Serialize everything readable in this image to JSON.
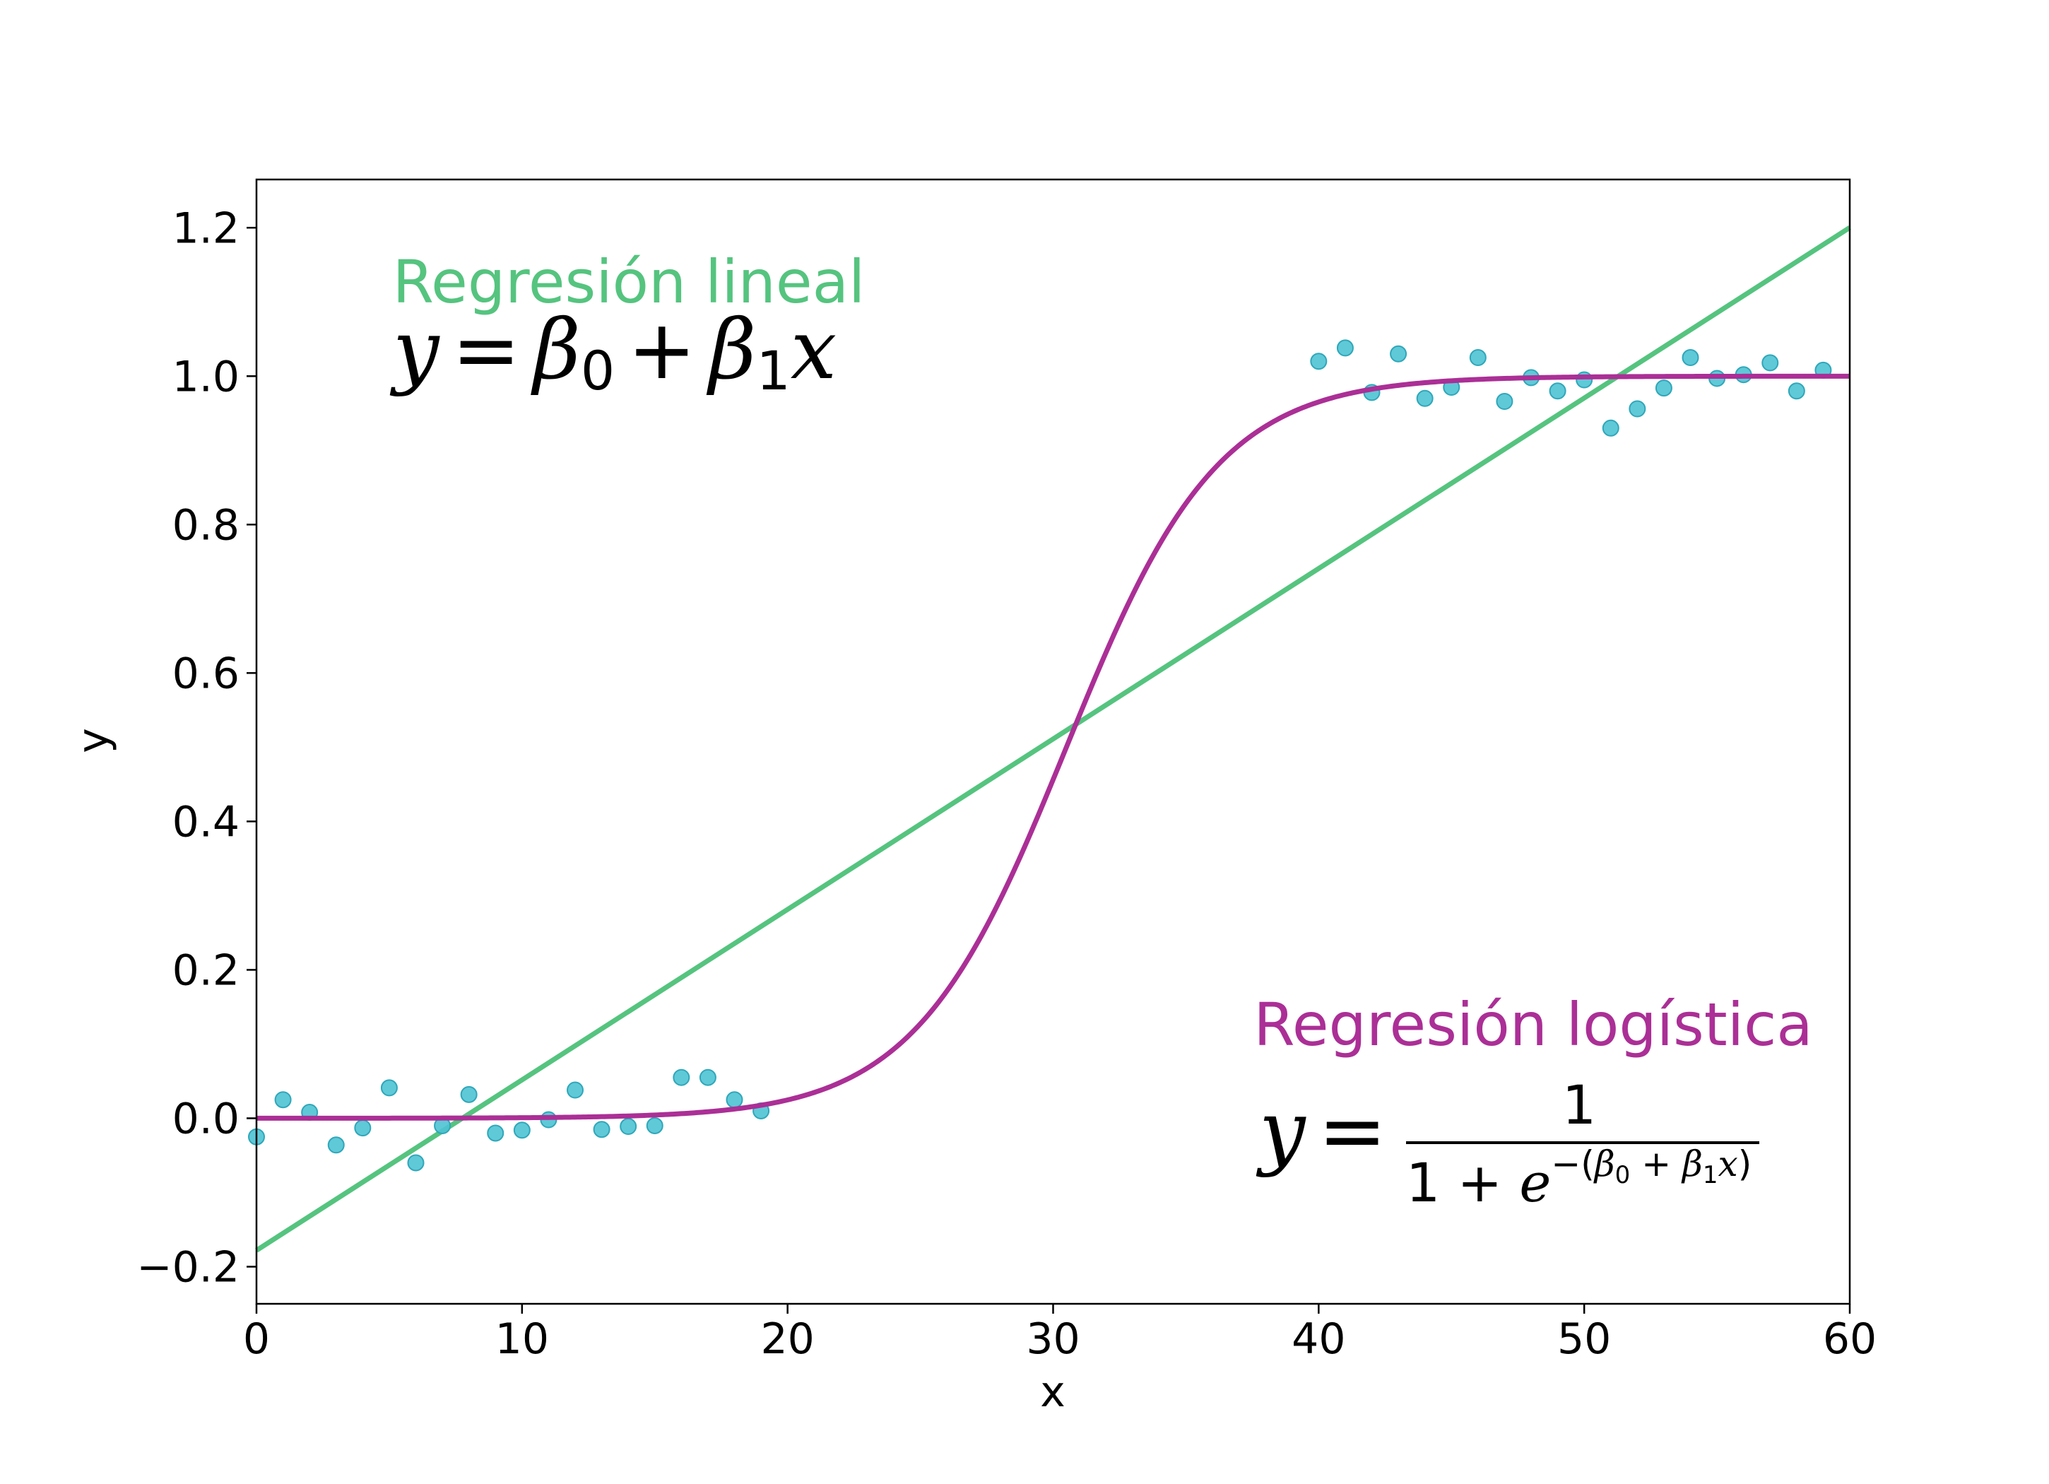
{
  "chart_data": {
    "type": "scatter",
    "xlabel": "x",
    "ylabel": "y",
    "xlim": [
      0,
      60
    ],
    "ylim": [
      -0.25,
      1.265
    ],
    "xticks": [
      0,
      10,
      20,
      30,
      40,
      50,
      60
    ],
    "yticks": [
      -0.2,
      0.0,
      0.2,
      0.4,
      0.6,
      0.8,
      1.0,
      1.2
    ],
    "ytick_labels": [
      "−0.2",
      "0.0",
      "0.2",
      "0.4",
      "0.6",
      "0.8",
      "1.0",
      "1.2"
    ],
    "grid": false,
    "colors": {
      "points": "#4ec3d4",
      "linear": "#55c47f",
      "logistic": "#ab2f96"
    },
    "points": {
      "x": [
        0,
        1,
        2,
        3,
        4,
        5,
        6,
        7,
        8,
        9,
        10,
        11,
        12,
        13,
        14,
        15,
        16,
        17,
        18,
        19,
        40,
        41,
        42,
        43,
        44,
        45,
        46,
        47,
        48,
        49,
        50,
        51,
        52,
        53,
        54,
        55,
        56,
        57,
        58,
        59
      ],
      "y": [
        -0.025,
        0.025,
        0.008,
        -0.036,
        -0.013,
        0.041,
        -0.06,
        -0.01,
        0.032,
        -0.02,
        -0.016,
        -0.002,
        0.038,
        -0.015,
        -0.011,
        -0.01,
        0.055,
        0.055,
        0.025,
        0.01,
        1.02,
        1.038,
        0.978,
        1.03,
        0.97,
        0.985,
        1.025,
        0.966,
        0.998,
        0.98,
        0.995,
        0.93,
        0.956,
        0.984,
        1.025,
        0.997,
        1.002,
        1.018,
        0.98,
        1.008
      ]
    },
    "linear_fit": {
      "intercept": -0.178,
      "slope": 0.02297
    },
    "logistic_fit": {
      "midpoint": 30.5,
      "rate": 0.35
    },
    "annotations": {
      "linear_title": "Regresión lineal",
      "logistic_title": "Regresión logística"
    }
  }
}
